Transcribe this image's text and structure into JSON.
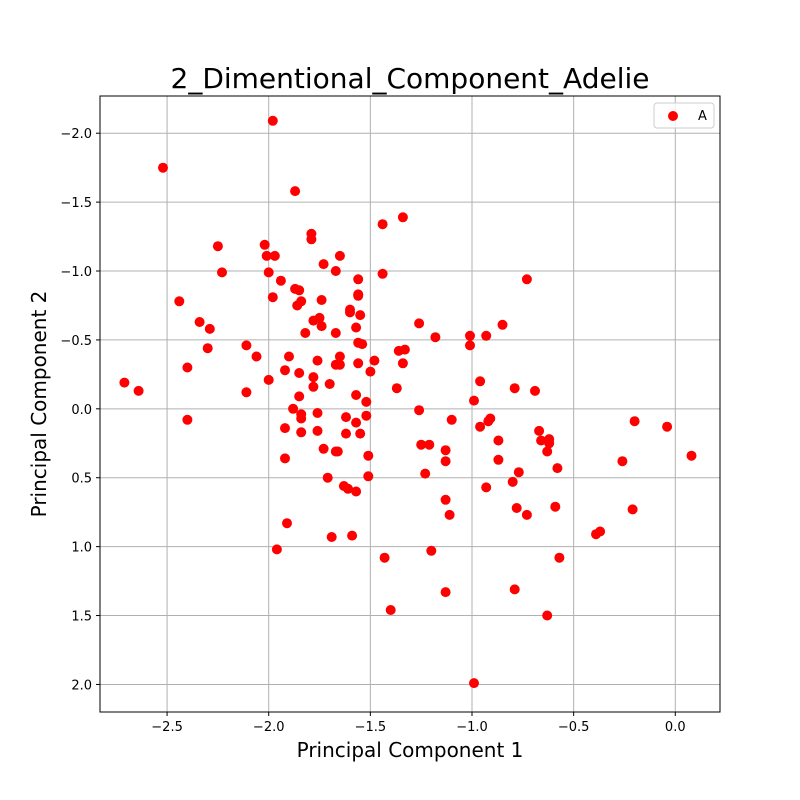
{
  "chart_data": {
    "type": "scatter",
    "title": "2_Dimentional_Component_Adelie",
    "xlabel": "Principal Component 1",
    "ylabel": "Principal Component 2",
    "xlim": [
      -2.83,
      0.22
    ],
    "ylim": [
      2.2,
      -2.27
    ],
    "y_inverted": true,
    "grid": true,
    "legend_position": "top-right",
    "x_ticks": [
      -2.5,
      -2.0,
      -1.5,
      -1.0,
      -0.5,
      0.0
    ],
    "x_tick_labels": [
      "−2.5",
      "−2.0",
      "−1.5",
      "−1.0",
      "−0.5",
      "0.0"
    ],
    "y_ticks": [
      -2.0,
      -1.5,
      -1.0,
      -0.5,
      0.0,
      0.5,
      1.0,
      1.5,
      2.0
    ],
    "y_tick_labels": [
      "−2.0",
      "−1.5",
      "−1.0",
      "−0.5",
      "0.0",
      "0.5",
      "1.0",
      "1.5",
      "2.0"
    ],
    "series": [
      {
        "name": "A",
        "color": "#ff0000",
        "marker": "circle",
        "points": [
          [
            -1.98,
            -2.09
          ],
          [
            -2.52,
            -1.75
          ],
          [
            -1.87,
            -1.58
          ],
          [
            -1.34,
            -1.39
          ],
          [
            -1.44,
            -1.34
          ],
          [
            -1.79,
            -1.27
          ],
          [
            -1.79,
            -1.23
          ],
          [
            -2.25,
            -1.18
          ],
          [
            -2.02,
            -1.19
          ],
          [
            -1.97,
            -1.11
          ],
          [
            -2.01,
            -1.11
          ],
          [
            -1.65,
            -1.11
          ],
          [
            -1.73,
            -1.05
          ],
          [
            -2.23,
            -0.99
          ],
          [
            -2.0,
            -0.99
          ],
          [
            -1.67,
            -1.0
          ],
          [
            -1.44,
            -0.98
          ],
          [
            -1.94,
            -0.93
          ],
          [
            -1.56,
            -0.94
          ],
          [
            -0.73,
            -0.94
          ],
          [
            -1.87,
            -0.87
          ],
          [
            -1.85,
            -0.86
          ],
          [
            -1.98,
            -0.81
          ],
          [
            -1.56,
            -0.83
          ],
          [
            -1.56,
            -0.82
          ],
          [
            -2.44,
            -0.78
          ],
          [
            -1.84,
            -0.78
          ],
          [
            -1.74,
            -0.79
          ],
          [
            -1.86,
            -0.75
          ],
          [
            -1.6,
            -0.72
          ],
          [
            -1.6,
            -0.7
          ],
          [
            -1.55,
            -0.68
          ],
          [
            -1.75,
            -0.66
          ],
          [
            -1.78,
            -0.64
          ],
          [
            -2.34,
            -0.63
          ],
          [
            -1.26,
            -0.62
          ],
          [
            -0.85,
            -0.61
          ],
          [
            -1.74,
            -0.6
          ],
          [
            -1.57,
            -0.59
          ],
          [
            -2.29,
            -0.58
          ],
          [
            -1.67,
            -0.55
          ],
          [
            -1.82,
            -0.55
          ],
          [
            -0.93,
            -0.53
          ],
          [
            -1.01,
            -0.53
          ],
          [
            -1.18,
            -0.52
          ],
          [
            -1.56,
            -0.48
          ],
          [
            -1.54,
            -0.47
          ],
          [
            -2.11,
            -0.46
          ],
          [
            -1.01,
            -0.46
          ],
          [
            -2.3,
            -0.44
          ],
          [
            -1.33,
            -0.43
          ],
          [
            -1.36,
            -0.42
          ],
          [
            -1.9,
            -0.38
          ],
          [
            -1.65,
            -0.38
          ],
          [
            -2.06,
            -0.38
          ],
          [
            -1.76,
            -0.35
          ],
          [
            -1.48,
            -0.35
          ],
          [
            -1.34,
            -0.33
          ],
          [
            -1.56,
            -0.33
          ],
          [
            -1.67,
            -0.32
          ],
          [
            -1.65,
            -0.32
          ],
          [
            -2.4,
            -0.3
          ],
          [
            -1.92,
            -0.28
          ],
          [
            -1.85,
            -0.26
          ],
          [
            -1.5,
            -0.27
          ],
          [
            -1.78,
            -0.23
          ],
          [
            -2.0,
            -0.21
          ],
          [
            -0.96,
            -0.2
          ],
          [
            -1.7,
            -0.18
          ],
          [
            -2.71,
            -0.19
          ],
          [
            -1.78,
            -0.16
          ],
          [
            -1.37,
            -0.15
          ],
          [
            -0.79,
            -0.15
          ],
          [
            -2.64,
            -0.13
          ],
          [
            -2.11,
            -0.12
          ],
          [
            -0.69,
            -0.13
          ],
          [
            -1.57,
            -0.1
          ],
          [
            -1.85,
            -0.09
          ],
          [
            -0.99,
            -0.06
          ],
          [
            -1.52,
            -0.05
          ],
          [
            -1.88,
            0.0
          ],
          [
            -1.26,
            0.01
          ],
          [
            -1.76,
            0.03
          ],
          [
            -1.84,
            0.04
          ],
          [
            -1.52,
            0.05
          ],
          [
            -1.62,
            0.06
          ],
          [
            -1.84,
            0.07
          ],
          [
            -2.4,
            0.08
          ],
          [
            -1.1,
            0.08
          ],
          [
            -0.91,
            0.07
          ],
          [
            -1.57,
            0.1
          ],
          [
            -0.92,
            0.09
          ],
          [
            -0.2,
            0.09
          ],
          [
            -0.04,
            0.13
          ],
          [
            -0.96,
            0.13
          ],
          [
            -1.92,
            0.14
          ],
          [
            -1.76,
            0.16
          ],
          [
            -1.84,
            0.17
          ],
          [
            -0.67,
            0.16
          ],
          [
            -1.62,
            0.18
          ],
          [
            -1.55,
            0.18
          ],
          [
            -0.62,
            0.22
          ],
          [
            -0.62,
            0.25
          ],
          [
            -0.87,
            0.23
          ],
          [
            -0.66,
            0.23
          ],
          [
            -1.25,
            0.26
          ],
          [
            -1.21,
            0.26
          ],
          [
            -1.73,
            0.29
          ],
          [
            -1.66,
            0.31
          ],
          [
            -1.13,
            0.3
          ],
          [
            -1.67,
            0.31
          ],
          [
            -0.63,
            0.31
          ],
          [
            -1.51,
            0.34
          ],
          [
            0.08,
            0.34
          ],
          [
            -1.92,
            0.36
          ],
          [
            -0.87,
            0.37
          ],
          [
            -1.13,
            0.38
          ],
          [
            -0.26,
            0.38
          ],
          [
            -0.58,
            0.43
          ],
          [
            -0.77,
            0.46
          ],
          [
            -1.23,
            0.47
          ],
          [
            -1.71,
            0.5
          ],
          [
            -1.51,
            0.49
          ],
          [
            -0.8,
            0.53
          ],
          [
            -1.63,
            0.56
          ],
          [
            -0.93,
            0.57
          ],
          [
            -1.61,
            0.58
          ],
          [
            -1.57,
            0.6
          ],
          [
            -1.13,
            0.66
          ],
          [
            -0.59,
            0.71
          ],
          [
            -0.21,
            0.73
          ],
          [
            -0.78,
            0.72
          ],
          [
            -0.73,
            0.77
          ],
          [
            -1.11,
            0.77
          ],
          [
            -1.91,
            0.83
          ],
          [
            -0.37,
            0.89
          ],
          [
            -0.39,
            0.91
          ],
          [
            -1.59,
            0.92
          ],
          [
            -1.69,
            0.93
          ],
          [
            -1.96,
            1.02
          ],
          [
            -1.2,
            1.03
          ],
          [
            -0.57,
            1.08
          ],
          [
            -1.43,
            1.08
          ],
          [
            -0.79,
            1.31
          ],
          [
            -1.13,
            1.33
          ],
          [
            -1.4,
            1.46
          ],
          [
            -0.63,
            1.5
          ],
          [
            -0.99,
            1.99
          ]
        ]
      }
    ]
  }
}
